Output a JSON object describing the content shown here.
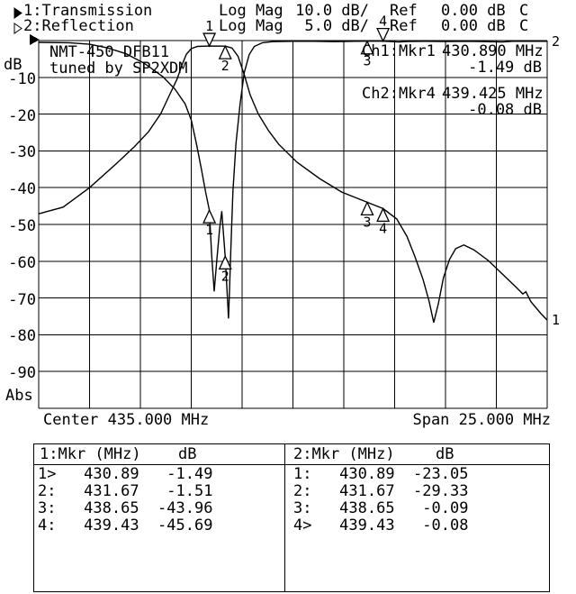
{
  "header": {
    "channels": [
      {
        "label": "1:Transmission",
        "format": "Log Mag",
        "scale": "10.0 dB/",
        "ref_label": "Ref",
        "ref_value": "0.00 dB",
        "cal_flag": "C"
      },
      {
        "label": "2:Reflection",
        "format": "Log Mag",
        "scale": "5.0 dB/",
        "ref_label": "Ref",
        "ref_value": "0.00 dB",
        "cal_flag": "C"
      }
    ]
  },
  "plot": {
    "y_axis_unit": "dB",
    "y_ticks": [
      "-10",
      "-20",
      "-30",
      "-40",
      "-50",
      "-60",
      "-70",
      "-80",
      "-90"
    ],
    "y_bottom_label": "Abs",
    "annotation_line1": "NMT-450 DFB11",
    "annotation_line2": "tuned by SP2XDM",
    "readouts": [
      {
        "label": "Ch1:Mkr1",
        "freq": "430.890 MHz",
        "value": "-1.49 dB"
      },
      {
        "label": "Ch2:Mkr4",
        "freq": "439.425 MHz",
        "value": "-0.08 dB"
      }
    ],
    "x_center_label": "Center 435.000 MHz",
    "x_span_label": "Span 25.000 MHz"
  },
  "tables": [
    {
      "header_left": "1:Mkr (MHz)",
      "header_right": "dB",
      "rows": [
        {
          "label": "1>",
          "freq": "430.89",
          "db": "-1.49"
        },
        {
          "label": "2:",
          "freq": "431.67",
          "db": "-1.51"
        },
        {
          "label": "3:",
          "freq": "438.65",
          "db": "-43.96"
        },
        {
          "label": "4:",
          "freq": "439.43",
          "db": "-45.69"
        }
      ]
    },
    {
      "header_left": "2:Mkr (MHz)",
      "header_right": "dB",
      "rows": [
        {
          "label": "1:",
          "freq": "430.89",
          "db": "-23.05"
        },
        {
          "label": "2:",
          "freq": "431.67",
          "db": "-29.33"
        },
        {
          "label": "3:",
          "freq": "438.65",
          "db": "-0.09"
        },
        {
          "label": "4>",
          "freq": "439.43",
          "db": "-0.08"
        }
      ]
    }
  ],
  "chart_data": {
    "type": "line",
    "title": "NMT-450 DFB11 tuned by SP2XDM",
    "x_center_mhz": 435.0,
    "x_span_mhz": 25.0,
    "xlim": [
      422.5,
      447.5
    ],
    "grid": true,
    "grid_divisions_x": 10,
    "grid_divisions_y": 10,
    "series": [
      {
        "name": "Transmission",
        "trace_number": "1",
        "scale_db_per_div": 10,
        "ref_db": 0,
        "ylim": [
          -100,
          0
        ],
        "points": [
          [
            422.5,
            -47.1
          ],
          [
            423.7,
            -45.3
          ],
          [
            425.0,
            -40.0
          ],
          [
            426.35,
            -33.3
          ],
          [
            427.2,
            -28.9
          ],
          [
            427.9,
            -24.8
          ],
          [
            428.5,
            -19.9
          ],
          [
            428.9,
            -15.2
          ],
          [
            429.3,
            -10.5
          ],
          [
            429.55,
            -6.6
          ],
          [
            429.76,
            -3.7
          ],
          [
            430.0,
            -2.2
          ],
          [
            430.3,
            -1.6
          ],
          [
            430.89,
            -1.49
          ],
          [
            431.67,
            -1.51
          ],
          [
            432.0,
            -2.0
          ],
          [
            432.3,
            -4.3
          ],
          [
            432.6,
            -9.2
          ],
          [
            432.9,
            -14.8
          ],
          [
            433.3,
            -20.0
          ],
          [
            433.8,
            -24.5
          ],
          [
            434.3,
            -28.2
          ],
          [
            435.2,
            -33.1
          ],
          [
            436.3,
            -37.5
          ],
          [
            437.4,
            -41.2
          ],
          [
            438.65,
            -43.96
          ],
          [
            439.43,
            -45.69
          ],
          [
            440.1,
            -48.5
          ],
          [
            440.6,
            -53.2
          ],
          [
            441.0,
            -58.8
          ],
          [
            441.4,
            -65.0
          ],
          [
            441.7,
            -71.0
          ],
          [
            441.92,
            -76.7
          ],
          [
            442.15,
            -71.5
          ],
          [
            442.4,
            -64.5
          ],
          [
            442.7,
            -59.5
          ],
          [
            443.0,
            -56.6
          ],
          [
            443.4,
            -55.6
          ],
          [
            443.9,
            -56.9
          ],
          [
            444.6,
            -59.8
          ],
          [
            445.3,
            -63.5
          ],
          [
            446.0,
            -67.2
          ],
          [
            446.3,
            -68.9
          ],
          [
            446.45,
            -68.3
          ],
          [
            446.7,
            -71.0
          ],
          [
            447.2,
            -74.3
          ],
          [
            447.5,
            -76.0
          ]
        ]
      },
      {
        "name": "Reflection",
        "trace_number": "2",
        "scale_db_per_div": 5,
        "ref_db": 0,
        "ylim": [
          -50,
          0
        ],
        "points": [
          [
            422.5,
            -0.25
          ],
          [
            424.0,
            -0.3
          ],
          [
            425.0,
            -0.5
          ],
          [
            425.9,
            -1.0
          ],
          [
            426.8,
            -1.8
          ],
          [
            427.7,
            -3.1
          ],
          [
            428.6,
            -4.9
          ],
          [
            429.2,
            -6.6
          ],
          [
            429.7,
            -8.6
          ],
          [
            430.0,
            -10.8
          ],
          [
            430.25,
            -14.0
          ],
          [
            430.5,
            -17.5
          ],
          [
            430.7,
            -20.5
          ],
          [
            430.89,
            -23.05
          ],
          [
            431.0,
            -29.0
          ],
          [
            431.13,
            -34.1
          ],
          [
            431.25,
            -30.0
          ],
          [
            431.4,
            -25.5
          ],
          [
            431.5,
            -23.2
          ],
          [
            431.67,
            -29.33
          ],
          [
            431.78,
            -35.0
          ],
          [
            431.83,
            -37.8
          ],
          [
            431.88,
            -34.0
          ],
          [
            431.95,
            -28.0
          ],
          [
            432.05,
            -20.5
          ],
          [
            432.2,
            -14.0
          ],
          [
            432.4,
            -8.7
          ],
          [
            432.6,
            -4.4
          ],
          [
            432.85,
            -1.9
          ],
          [
            433.1,
            -0.8
          ],
          [
            433.5,
            -0.3
          ],
          [
            434.0,
            -0.15
          ],
          [
            435.0,
            -0.1
          ],
          [
            436.0,
            -0.1
          ],
          [
            437.0,
            -0.15
          ],
          [
            438.0,
            -0.1
          ],
          [
            438.65,
            -0.09
          ],
          [
            439.43,
            -0.08
          ],
          [
            440.2,
            -0.2
          ],
          [
            440.6,
            -0.12
          ],
          [
            441.5,
            -0.1
          ],
          [
            442.5,
            -0.12
          ],
          [
            443.5,
            -0.1
          ],
          [
            444.5,
            -0.15
          ],
          [
            445.3,
            -0.2
          ],
          [
            445.8,
            -0.1
          ],
          [
            447.5,
            -0.1
          ]
        ]
      }
    ],
    "markers": [
      {
        "channel": 1,
        "label": "1",
        "freq": 430.89,
        "db": -1.49,
        "active": true
      },
      {
        "channel": 1,
        "label": "2",
        "freq": 431.67,
        "db": -1.51,
        "active": false
      },
      {
        "channel": 1,
        "label": "3",
        "freq": 438.65,
        "db": -43.96,
        "active": false
      },
      {
        "channel": 1,
        "label": "4",
        "freq": 439.43,
        "db": -45.69,
        "active": false
      },
      {
        "channel": 2,
        "label": "1",
        "freq": 430.89,
        "db": -23.05,
        "active": false
      },
      {
        "channel": 2,
        "label": "2",
        "freq": 431.67,
        "db": -29.33,
        "active": false
      },
      {
        "channel": 2,
        "label": "3",
        "freq": 438.65,
        "db": -0.09,
        "active": false
      },
      {
        "channel": 2,
        "label": "4",
        "freq": 439.43,
        "db": -0.08,
        "active": true
      }
    ]
  }
}
